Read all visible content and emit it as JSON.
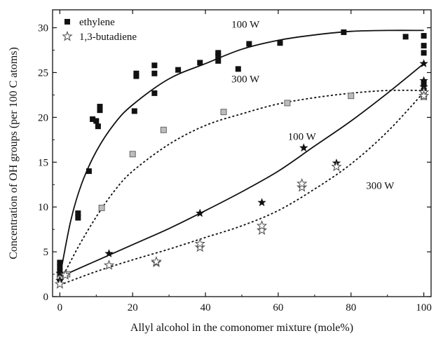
{
  "chart_data": {
    "type": "scatter",
    "title": "",
    "xlabel": "Allyl alcohol in the comonomer mixture (mole%)",
    "ylabel": "Concentration of OH groups (per 100 C atoms)",
    "xlim": [
      -2,
      102
    ],
    "ylim": [
      0,
      32
    ],
    "xticks": [
      0,
      20,
      40,
      60,
      80,
      100
    ],
    "yticks": [
      0,
      5,
      10,
      15,
      20,
      25,
      30
    ],
    "grid": false,
    "legend": {
      "placement": "top-left",
      "entries": [
        {
          "label": "ethylene",
          "marker": "square"
        },
        {
          "label": "1,3-butadiene",
          "marker": "star"
        }
      ]
    },
    "series": [
      {
        "name": "ethylene, 100 W",
        "marker": "square-filled",
        "color": "#111111",
        "points": [
          [
            0,
            2.3
          ],
          [
            0,
            2.8
          ],
          [
            0,
            3.3
          ],
          [
            0,
            3.8
          ],
          [
            0,
            2.0
          ],
          [
            5,
            8.8
          ],
          [
            5,
            9.3
          ],
          [
            8,
            14.0
          ],
          [
            9,
            19.8
          ],
          [
            10,
            19.6
          ],
          [
            10.5,
            19.0
          ],
          [
            11,
            20.8
          ],
          [
            11,
            21.2
          ],
          [
            20.5,
            20.7
          ],
          [
            21,
            24.6
          ],
          [
            21,
            24.9
          ],
          [
            26,
            24.9
          ],
          [
            26,
            25.8
          ],
          [
            26,
            22.7
          ],
          [
            32.5,
            25.3
          ],
          [
            38.5,
            26.1
          ],
          [
            43.5,
            26.3
          ],
          [
            43.5,
            26.9
          ],
          [
            43.5,
            27.2
          ],
          [
            49,
            25.4
          ],
          [
            52,
            28.2
          ],
          [
            60.5,
            28.3
          ],
          [
            78,
            29.5
          ],
          [
            95,
            29.0
          ],
          [
            100,
            29.1
          ],
          [
            100,
            28.0
          ],
          [
            100,
            27.2
          ],
          [
            100,
            23.8
          ],
          [
            100,
            23.0
          ]
        ]
      },
      {
        "name": "ethylene, 300 W",
        "marker": "square-open",
        "color": "#777777",
        "points": [
          [
            0,
            2.2
          ],
          [
            2,
            2.5
          ],
          [
            11.5,
            9.9
          ],
          [
            20,
            15.9
          ],
          [
            28.5,
            18.6
          ],
          [
            45,
            20.6
          ],
          [
            62.5,
            21.6
          ],
          [
            80,
            22.4
          ],
          [
            100,
            22.3
          ]
        ]
      },
      {
        "name": "1,3-butadiene, 100 W",
        "marker": "star-filled",
        "color": "#111111",
        "points": [
          [
            0,
            1.8
          ],
          [
            0,
            2.6
          ],
          [
            13.5,
            4.8
          ],
          [
            38.5,
            9.3
          ],
          [
            55.5,
            10.5
          ],
          [
            67,
            16.6
          ],
          [
            76,
            14.9
          ],
          [
            100,
            26.0
          ],
          [
            100,
            24.1
          ],
          [
            100,
            23.4
          ]
        ]
      },
      {
        "name": "1,3-butadiene, 300 W",
        "marker": "star-open",
        "color": "#777777",
        "points": [
          [
            0,
            1.4
          ],
          [
            1.5,
            2.4
          ],
          [
            13.5,
            3.5
          ],
          [
            26.5,
            3.8
          ],
          [
            26.5,
            3.9
          ],
          [
            38.5,
            5.5
          ],
          [
            38.5,
            5.9
          ],
          [
            55.5,
            7.4
          ],
          [
            55.5,
            7.9
          ],
          [
            66.5,
            12.2
          ],
          [
            66.5,
            12.6
          ],
          [
            76,
            14.5
          ],
          [
            100,
            22.8
          ],
          [
            100,
            22.4
          ]
        ]
      }
    ],
    "curves": [
      {
        "name": "ethylene 100 W fit",
        "style": "solid",
        "points": [
          [
            0,
            2.2
          ],
          [
            3,
            8.5
          ],
          [
            6,
            12.6
          ],
          [
            10,
            16.2
          ],
          [
            15,
            19.3
          ],
          [
            20,
            21.4
          ],
          [
            30,
            24.3
          ],
          [
            40,
            26.0
          ],
          [
            50,
            27.6
          ],
          [
            60,
            28.6
          ],
          [
            70,
            29.2
          ],
          [
            80,
            29.6
          ],
          [
            90,
            29.7
          ],
          [
            100,
            29.7
          ]
        ]
      },
      {
        "name": "ethylene 300 W fit",
        "style": "dotted",
        "points": [
          [
            0,
            1.6
          ],
          [
            5,
            5.5
          ],
          [
            10,
            8.9
          ],
          [
            15,
            11.8
          ],
          [
            20,
            14.0
          ],
          [
            30,
            17.0
          ],
          [
            40,
            19.1
          ],
          [
            50,
            20.4
          ],
          [
            60,
            21.5
          ],
          [
            70,
            22.2
          ],
          [
            80,
            22.7
          ],
          [
            90,
            23.0
          ],
          [
            100,
            23.0
          ]
        ]
      },
      {
        "name": "1,3-butadiene 100 W fit",
        "style": "solid",
        "points": [
          [
            0,
            2.2
          ],
          [
            10,
            4.0
          ],
          [
            20,
            5.8
          ],
          [
            30,
            7.6
          ],
          [
            40,
            9.6
          ],
          [
            50,
            11.7
          ],
          [
            60,
            14.0
          ],
          [
            70,
            16.8
          ],
          [
            80,
            19.6
          ],
          [
            90,
            22.7
          ],
          [
            100,
            26.0
          ]
        ]
      },
      {
        "name": "1,3-butadiene 300 W fit",
        "style": "dotted",
        "points": [
          [
            0,
            1.3
          ],
          [
            10,
            2.8
          ],
          [
            20,
            4.1
          ],
          [
            30,
            5.3
          ],
          [
            40,
            6.6
          ],
          [
            50,
            7.9
          ],
          [
            60,
            9.6
          ],
          [
            70,
            12.0
          ],
          [
            80,
            14.8
          ],
          [
            90,
            18.4
          ],
          [
            100,
            22.8
          ]
        ]
      }
    ],
    "annotations": [
      {
        "text": "100 W",
        "x": 51,
        "y": 30.0
      },
      {
        "text": "300 W",
        "x": 51,
        "y": 23.9
      },
      {
        "text": "100 W",
        "x": 66.5,
        "y": 17.5
      },
      {
        "text": "300 W",
        "x": 88,
        "y": 12.0
      }
    ]
  }
}
